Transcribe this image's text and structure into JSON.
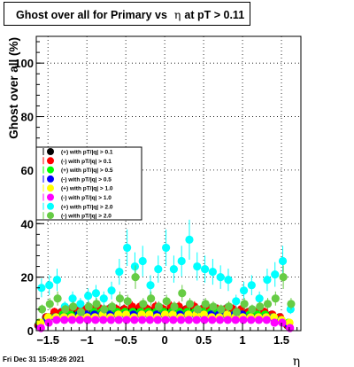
{
  "title": {
    "prefix": "Ghost over all for Primary vs",
    "symbol": "η",
    "suffix": "at pT > 0.11"
  },
  "footer": "Fri Dec 31 15:49:26 2021",
  "chart_data": {
    "type": "scatter",
    "xlabel": "η",
    "ylabel": "Ghost over all (%)",
    "xlim": [
      -1.65,
      1.75
    ],
    "ylim": [
      0,
      110
    ],
    "x_ticks": [
      "−1.5",
      "−1",
      "−0.5",
      "0",
      "0.5",
      "1",
      "1.5"
    ],
    "x_tick_values": [
      -1.5,
      -1,
      -0.5,
      0,
      0.5,
      1,
      1.5
    ],
    "y_ticks": [
      "0",
      "20",
      "40",
      "60",
      "80",
      "100"
    ],
    "y_tick_values": [
      0,
      20,
      40,
      60,
      80,
      100
    ],
    "grid": true,
    "legend_position": "middle-left",
    "x": [
      -1.6,
      -1.5,
      -1.4,
      -1.3,
      -1.2,
      -1.1,
      -1.0,
      -0.9,
      -0.8,
      -0.7,
      -0.6,
      -0.5,
      -0.4,
      -0.3,
      -0.2,
      -0.1,
      0.0,
      0.1,
      0.2,
      0.3,
      0.4,
      0.5,
      0.6,
      0.7,
      0.8,
      0.9,
      1.0,
      1.1,
      1.2,
      1.3,
      1.4,
      1.5,
      1.6
    ],
    "series": [
      {
        "name": "(+) with pT/|q| > 0.1",
        "color": "#000000",
        "values": [
          2,
          5,
          6,
          7,
          7,
          7,
          7,
          7,
          8,
          8,
          8,
          8,
          8,
          8,
          8,
          8,
          8,
          8,
          8,
          8,
          8,
          8,
          8,
          8,
          8,
          8,
          7,
          7,
          7,
          7,
          6,
          5,
          2
        ]
      },
      {
        "name": "(-) with pT/|q| > 0.1",
        "color": "#ff0000",
        "values": [
          2,
          5,
          7,
          7,
          8,
          8,
          8,
          8,
          8,
          8,
          8,
          8,
          9,
          9,
          8,
          9,
          8,
          9,
          9,
          8,
          9,
          8,
          8,
          8,
          8,
          8,
          8,
          7,
          7,
          7,
          6,
          5,
          2
        ]
      },
      {
        "name": "(+) with pT/|q| > 0.5",
        "color": "#00ff00",
        "values": [
          3,
          4,
          5,
          6,
          6,
          6,
          6,
          7,
          7,
          7,
          7,
          7,
          7,
          7,
          7,
          7,
          7,
          7,
          7,
          7,
          7,
          7,
          7,
          7,
          6,
          6,
          6,
          6,
          6,
          6,
          5,
          4,
          3
        ]
      },
      {
        "name": "(-) with pT/|q| > 0.5",
        "color": "#0000ff",
        "values": [
          2,
          4,
          5,
          5,
          5,
          6,
          6,
          6,
          6,
          6,
          6,
          6,
          6,
          6,
          6,
          6,
          6,
          6,
          6,
          6,
          6,
          6,
          6,
          6,
          6,
          6,
          6,
          5,
          5,
          5,
          5,
          4,
          2
        ]
      },
      {
        "name": "(+) with pT/|q| > 1.0",
        "color": "#ffff00",
        "values": [
          3,
          5,
          5,
          5,
          5,
          5,
          5,
          5,
          6,
          5,
          6,
          6,
          5,
          6,
          6,
          5,
          6,
          6,
          5,
          6,
          6,
          6,
          5,
          5,
          6,
          5,
          5,
          5,
          5,
          5,
          5,
          4,
          3
        ]
      },
      {
        "name": "(-) with pT/|q| > 1.0",
        "color": "#ff00ff",
        "values": [
          1,
          3,
          4,
          4,
          4,
          4,
          4,
          4,
          4,
          4,
          4,
          4,
          4,
          4,
          4,
          4,
          4,
          4,
          4,
          4,
          4,
          4,
          4,
          4,
          4,
          4,
          4,
          4,
          4,
          4,
          3,
          3,
          1
        ]
      },
      {
        "name": "(+) with pT/|q| > 2.0",
        "color": "#00ffff",
        "values": [
          16,
          17,
          19,
          9,
          12,
          10,
          13,
          14,
          12,
          15,
          22,
          31,
          24,
          26,
          17,
          23,
          31,
          23,
          26,
          34,
          24,
          23,
          22,
          20,
          19,
          11,
          15,
          17,
          12,
          19,
          21,
          26,
          8
        ]
      },
      {
        "name": "(-) with pT/|q| > 2.0",
        "color": "#66cc44",
        "values": [
          8,
          10,
          12,
          8,
          9,
          7,
          9,
          10,
          8,
          9,
          12,
          11,
          20,
          10,
          12,
          9,
          11,
          9,
          14,
          10,
          8,
          10,
          9,
          8,
          9,
          7,
          10,
          8,
          9,
          10,
          12,
          20,
          10
        ]
      }
    ],
    "error_scale": 0.22
  }
}
